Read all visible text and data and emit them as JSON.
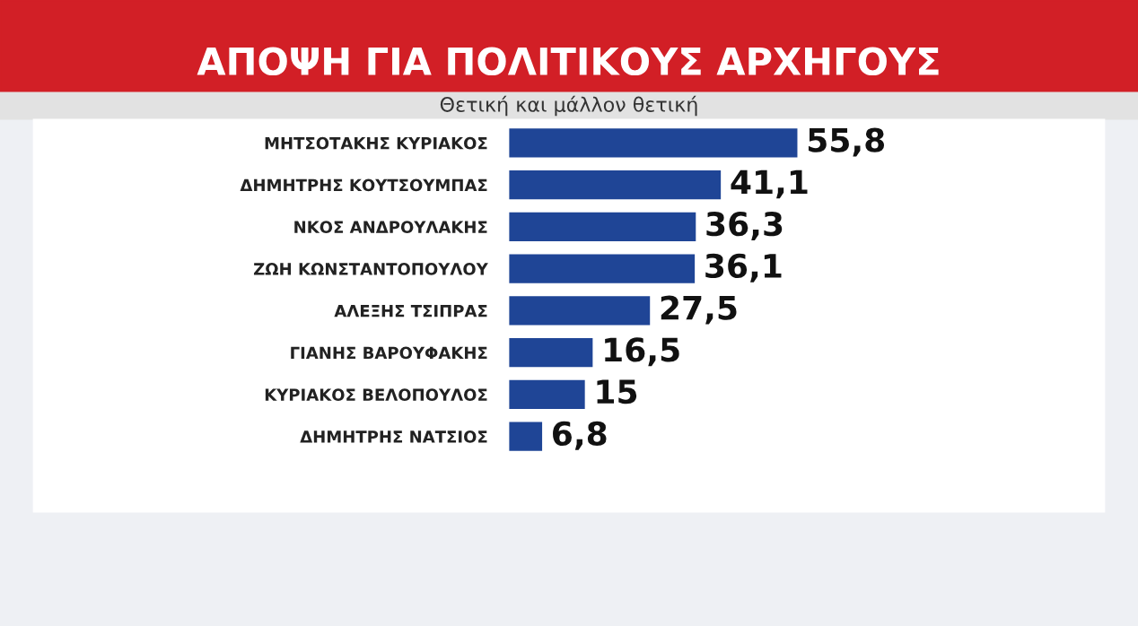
{
  "chart_data": {
    "type": "bar",
    "orientation": "horizontal",
    "title": "ΑΠΟΨΗ ΓΙΑ ΠΟΛΙΤΙΚΟΥΣ ΑΡΧΗΓΟΥΣ",
    "subtitle": "Θετική και μάλλον θετική",
    "categories": [
      "ΜΗΤΣΟΤΑΚΗΣ ΚΥΡΙΑΚΟΣ",
      "ΔΗΜΗΤΡΗΣ ΚΟΥΤΣΟΥΜΠΑΣ",
      "ΝΚΟΣ ΑΝΔΡΟΥΛΑΚΗΣ",
      "ΖΩΗ ΚΩΝΣΤΑΝΤΟΠΟΥΛΟΥ",
      "ΑΛΕΞΗΣ ΤΣΙΠΡΑΣ",
      "ΓΙΑΝΗΣ ΒΑΡΟΥΦΑΚΗΣ",
      "ΚΥΡΙΑΚΟΣ ΒΕΛΟΠΟΥΛΟΣ",
      "ΔΗΜΗΤΡΗΣ ΝΑΤΣΙΟΣ"
    ],
    "values": [
      55.8,
      41.1,
      36.3,
      36.1,
      27.5,
      16.5,
      15,
      6.8
    ],
    "value_labels": [
      "55,8",
      "41,1",
      "36,3",
      "36,1",
      "27,5",
      "16,5",
      "15",
      "6,8"
    ],
    "color": "#1f4596"
  }
}
